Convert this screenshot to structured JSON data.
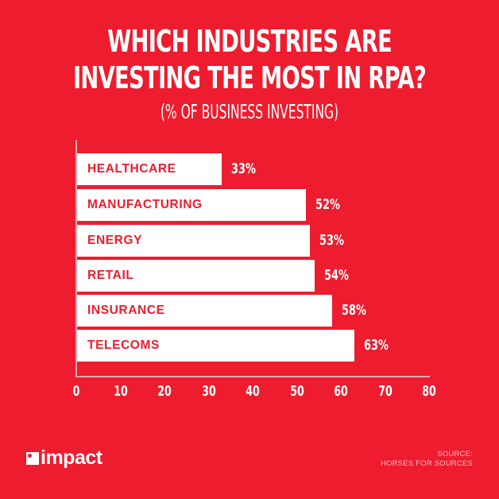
{
  "header": {
    "title_line1": "WHICH INDUSTRIES ARE",
    "title_line2": "INVESTING THE MOST IN RPA?",
    "subtitle": "(% OF BUSINESS INVESTING)"
  },
  "bars": [
    {
      "label": "HEALTHCARE",
      "value": 33,
      "value_label": "33%"
    },
    {
      "label": "MANUFACTURING",
      "value": 52,
      "value_label": "52%"
    },
    {
      "label": "ENERGY",
      "value": 53,
      "value_label": "53%"
    },
    {
      "label": "RETAIL",
      "value": 54,
      "value_label": "54%"
    },
    {
      "label": "INSURANCE",
      "value": 58,
      "value_label": "58%"
    },
    {
      "label": "TELECOMS",
      "value": 63,
      "value_label": "63%"
    }
  ],
  "x_ticks": [
    "0",
    "10",
    "20",
    "30",
    "40",
    "50",
    "60",
    "70",
    "80"
  ],
  "footer": {
    "logo_text": "impact",
    "source_line1": "SOURCE:",
    "source_line2": "HORSES FOR SOURCES"
  },
  "colors": {
    "background": "#ED1C2E",
    "bar": "#FFFFFF",
    "label_text": "#ED1C2E",
    "value_text": "#FFFFFF"
  },
  "chart_data": {
    "type": "bar",
    "orientation": "horizontal",
    "title": "WHICH INDUSTRIES ARE INVESTING THE MOST IN RPA?",
    "subtitle": "(% OF BUSINESS INVESTING)",
    "categories": [
      "HEALTHCARE",
      "MANUFACTURING",
      "ENERGY",
      "RETAIL",
      "INSURANCE",
      "TELECOMS"
    ],
    "values": [
      33,
      52,
      53,
      54,
      58,
      63
    ],
    "data_labels": [
      "33%",
      "52%",
      "53%",
      "54%",
      "58%",
      "63%"
    ],
    "xlabel": "",
    "ylabel": "",
    "xlim": [
      0,
      80
    ],
    "x_ticks": [
      0,
      10,
      20,
      30,
      40,
      50,
      60,
      70,
      80
    ],
    "grid": false,
    "legend": null,
    "source": "SOURCE: HORSES FOR SOURCES"
  }
}
